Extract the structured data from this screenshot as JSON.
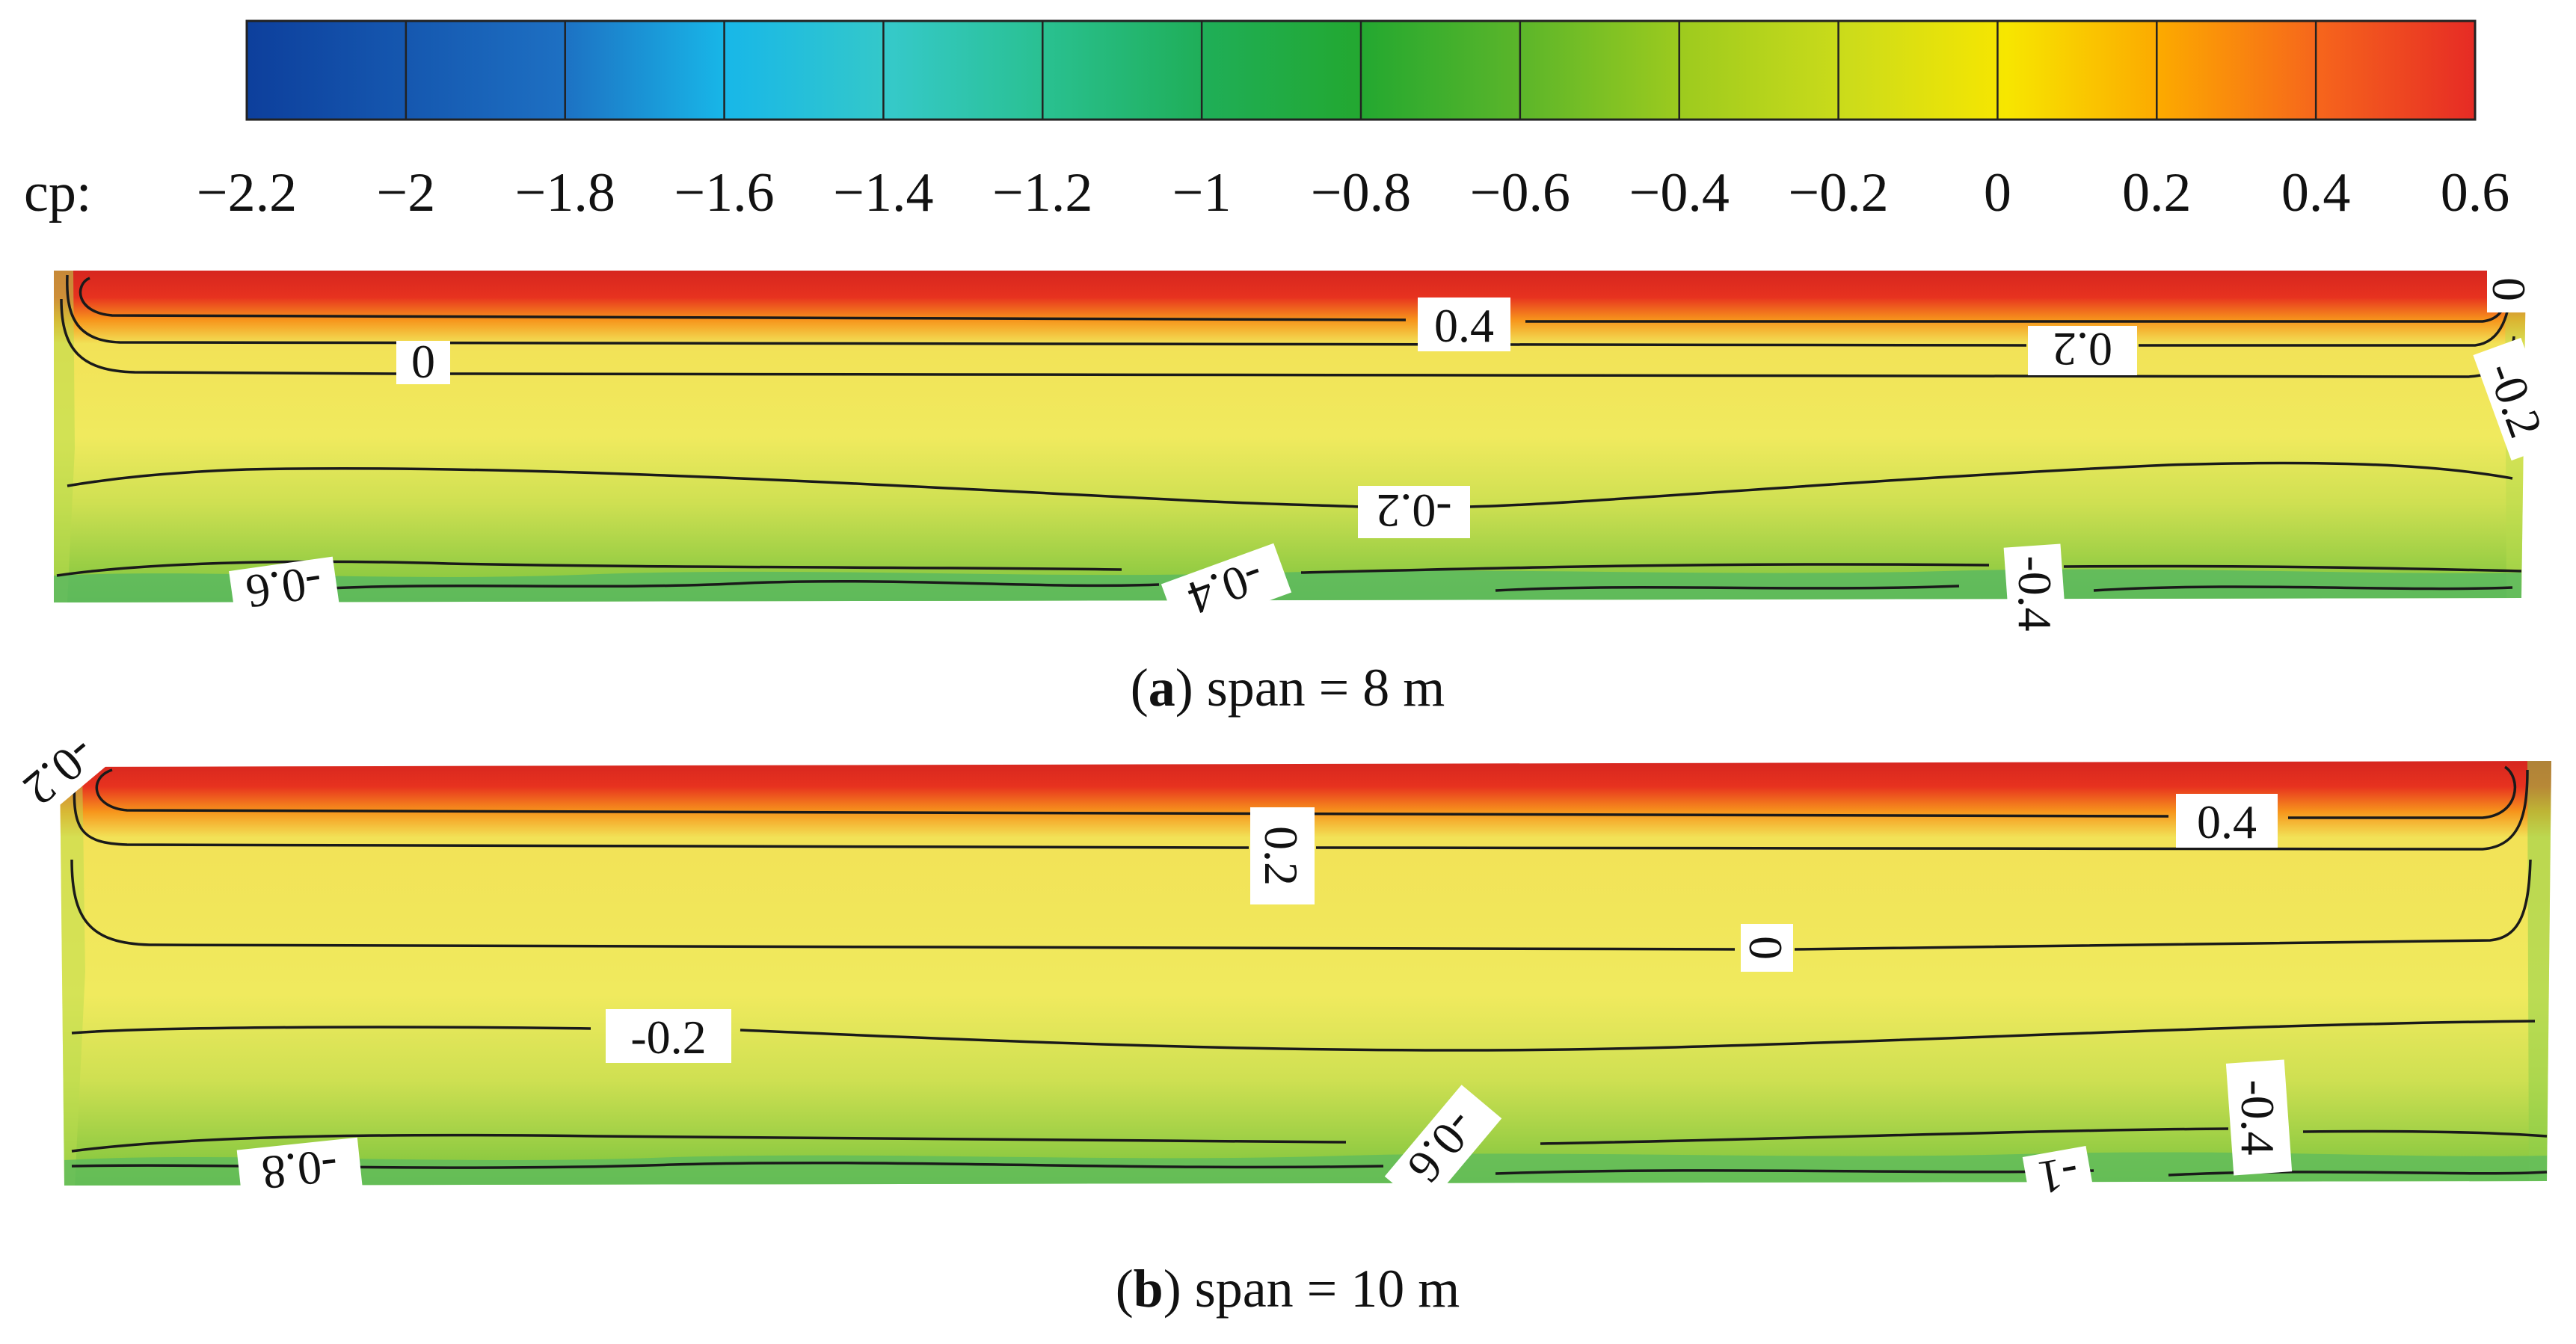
{
  "chart_data": [
    {
      "type": "heatmap",
      "role": "colorbar",
      "label": "cp:",
      "ticks": [
        "−2.2",
        "−2",
        "−1.8",
        "−1.6",
        "−1.4",
        "−1.2",
        "−1",
        "−0.8",
        "−0.6",
        "−0.4",
        "−0.2",
        "0",
        "0.2",
        "0.4",
        "0.6"
      ],
      "range": [
        -2.2,
        0.6
      ],
      "color_stops": [
        {
          "value": -2.2,
          "color": "#0d3f9c"
        },
        {
          "value": -1.8,
          "color": "#1d6fc2"
        },
        {
          "value": -1.6,
          "color": "#18b7e8"
        },
        {
          "value": -1.4,
          "color": "#35c9c8"
        },
        {
          "value": -1.2,
          "color": "#29c08f"
        },
        {
          "value": -1.0,
          "color": "#1fae57"
        },
        {
          "value": -0.8,
          "color": "#23a830"
        },
        {
          "value": -0.6,
          "color": "#5ab52a"
        },
        {
          "value": -0.4,
          "color": "#9ecb1e"
        },
        {
          "value": -0.2,
          "color": "#e8e517"
        },
        {
          "value": 0.0,
          "color": "#f7e600"
        },
        {
          "value": 0.2,
          "color": "#fca800"
        },
        {
          "value": 0.4,
          "color": "#f6651c"
        },
        {
          "value": 0.6,
          "color": "#e62b25"
        }
      ]
    },
    {
      "type": "heatmap",
      "panel": "a",
      "caption_letter": "a",
      "caption_text": " span = 8 m",
      "contour_labels": [
        "0.4",
        "0",
        "0.2",
        "-0.2",
        "-0.6",
        "-0.4",
        "-0.4",
        "0",
        "-0.2"
      ]
    },
    {
      "type": "heatmap",
      "panel": "b",
      "caption_letter": "b",
      "caption_text": " span = 10 m",
      "contour_labels": [
        "0.2",
        "0.4",
        "0",
        "-0.2",
        "-0.8",
        "-0.6",
        "-0.4",
        "-1",
        "-0.2"
      ]
    }
  ]
}
